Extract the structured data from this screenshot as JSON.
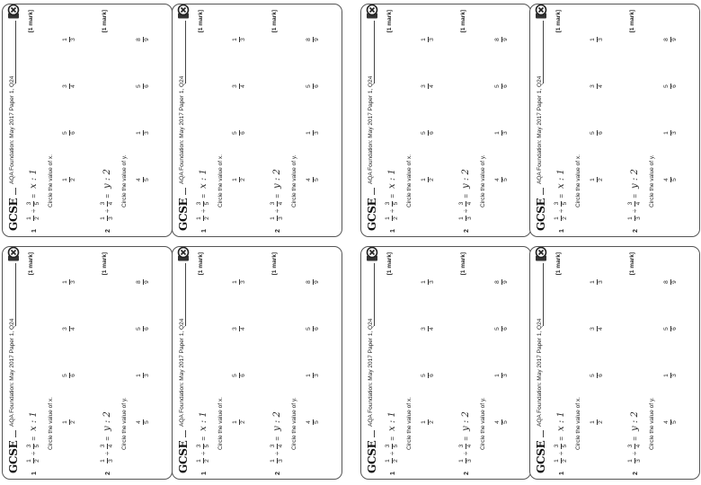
{
  "header": {
    "brand": "GCSE",
    "source": "AQA Foundation: May 2017 Paper 1, Q24"
  },
  "questions": [
    {
      "number": "1",
      "lhs_a": {
        "num": "1",
        "den": "2"
      },
      "lhs_b": {
        "num": "3",
        "den": "5"
      },
      "op": "÷",
      "eq_sign": "=",
      "rhs": "x : 1",
      "marks": "[1 mark]",
      "instruction": "Circle the value of x.",
      "options": [
        {
          "num": "1",
          "den": "2"
        },
        {
          "num": "5",
          "den": "6"
        },
        {
          "num": "3",
          "den": "4"
        },
        {
          "num": "1",
          "den": "3"
        }
      ]
    },
    {
      "number": "2",
      "lhs_a": {
        "num": "1",
        "den": "3"
      },
      "lhs_b": {
        "num": "3",
        "den": "4"
      },
      "op": "÷",
      "eq_sign": "=",
      "rhs": "y : 2",
      "marks": "[1 mark]",
      "instruction": "Circle the value of y.",
      "options": [
        {
          "num": "4",
          "den": "5"
        },
        {
          "num": "1",
          "den": "3"
        },
        {
          "num": "5",
          "den": "6"
        },
        {
          "num": "8",
          "den": "9"
        }
      ]
    }
  ],
  "style": {
    "accent": "#222222",
    "border": "#555555"
  }
}
